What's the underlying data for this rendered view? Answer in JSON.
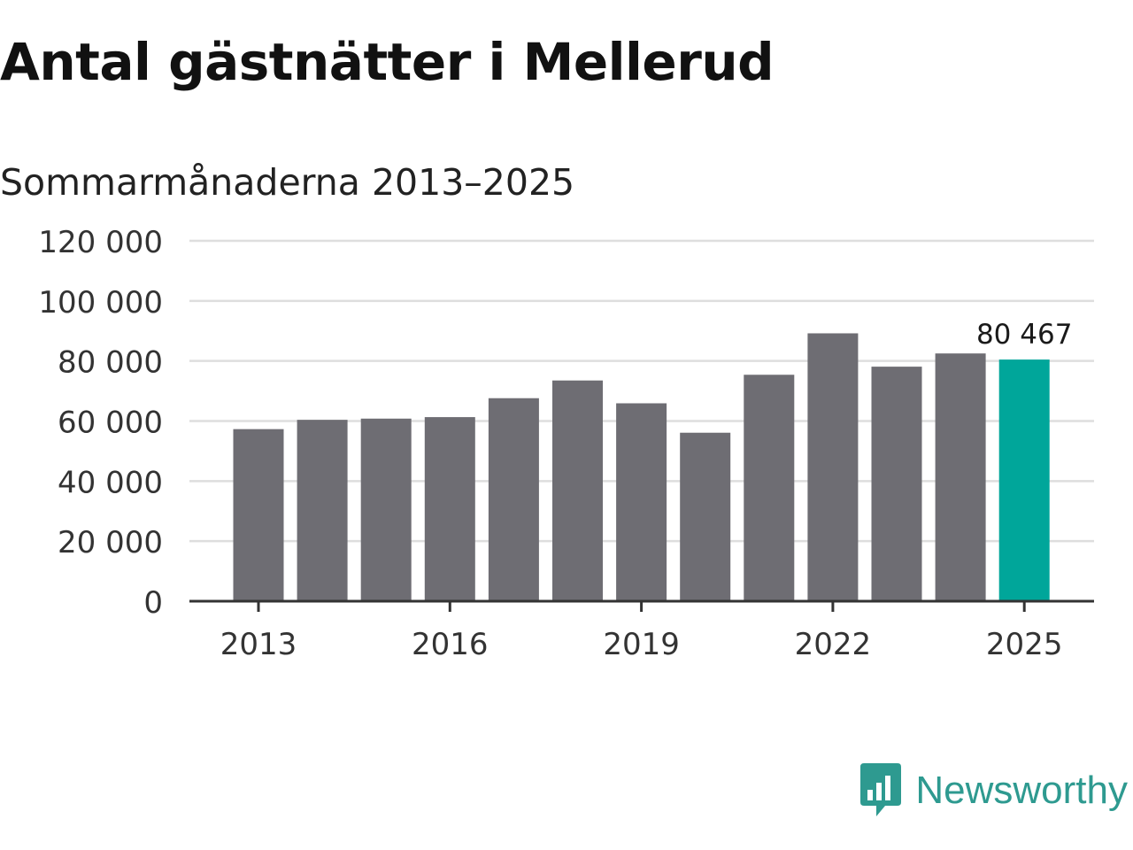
{
  "title": "Antal gästnätter i Mellerud",
  "subtitle": "Sommarmånaderna 2013–2025",
  "brand": {
    "name": "Newsworthy",
    "icon": "newsworthy-logo-icon",
    "color": "#2e9a90"
  },
  "colors": {
    "bar": "#6e6d73",
    "highlight": "#00a69a",
    "grid": "#dedede",
    "axis": "#333333"
  },
  "chart_data": {
    "type": "bar",
    "categories": [
      "2013",
      "2014",
      "2015",
      "2016",
      "2017",
      "2018",
      "2019",
      "2020",
      "2021",
      "2022",
      "2023",
      "2024",
      "2025"
    ],
    "values": [
      57300,
      60400,
      60800,
      61300,
      67600,
      73500,
      65900,
      56100,
      75400,
      89200,
      78100,
      82500,
      80467
    ],
    "highlight_index": 12,
    "data_label": "80 467",
    "ylim": [
      0,
      120000
    ],
    "yticks": [
      0,
      20000,
      40000,
      60000,
      80000,
      100000,
      120000
    ],
    "ytick_labels": [
      "0",
      "20 000",
      "40 000",
      "60 000",
      "80 000",
      "100 000",
      "120 000"
    ],
    "xtick_labels": [
      "2013",
      "2016",
      "2019",
      "2022",
      "2025"
    ],
    "grid": true,
    "legend": "none"
  }
}
